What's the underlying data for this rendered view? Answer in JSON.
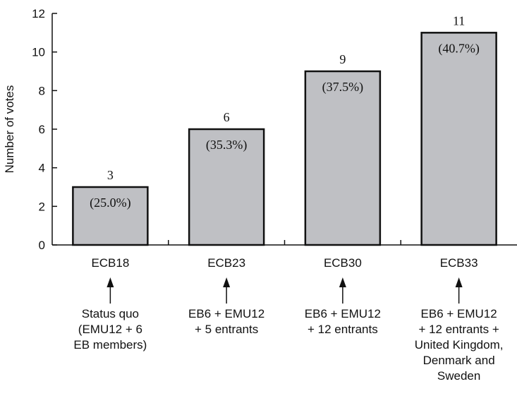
{
  "chart_data": {
    "type": "bar",
    "ylabel": "Number of votes",
    "ylim": [
      0,
      12
    ],
    "yticks": [
      "0",
      "2",
      "4",
      "6",
      "8",
      "10",
      "12"
    ],
    "categories": [
      "ECB18",
      "ECB23",
      "ECB30",
      "ECB33"
    ],
    "values": [
      3,
      6,
      9,
      11
    ],
    "value_labels": [
      "3",
      "6",
      "9",
      "11"
    ],
    "percent_labels": [
      "(25.0%)",
      "(35.3%)",
      "(37.5%)",
      "(40.7%)"
    ],
    "annotations": [
      [
        "Status quo",
        "(EMU12 + 6",
        "EB members)"
      ],
      [
        "EB6 + EMU12",
        "+ 5 entrants"
      ],
      [
        "EB6 + EMU12",
        "+ 12 entrants"
      ],
      [
        "EB6 + EMU12",
        "+ 12 entrants +",
        "United Kingdom,",
        "Denmark and",
        "Sweden"
      ]
    ],
    "grid": false,
    "colors": {
      "bar_fill": "#bfc0c4",
      "bar_stroke": "#111111",
      "axis": "#111111"
    }
  }
}
